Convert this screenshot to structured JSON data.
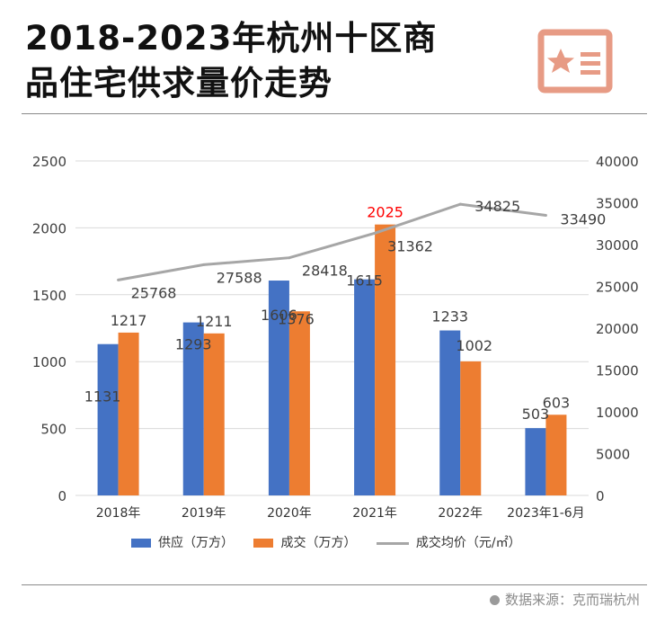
{
  "page": {
    "title_line1": "2018-2023年杭州十区商",
    "title_line2": "品住宅供求量价走势",
    "badge_icon": "news-star-icon",
    "badge_color": "#e79b85",
    "source": "数据来源：克而瑞杭州"
  },
  "chart_data": {
    "type": "bar",
    "categories": [
      "2018年",
      "2019年",
      "2020年",
      "2021年",
      "2022年",
      "2023年1-6月"
    ],
    "series": [
      {
        "name": "供应（万方）",
        "type": "bar",
        "axis": "left",
        "color": "#4472c4",
        "values": [
          1131,
          1293,
          1606,
          1615,
          1233,
          503
        ]
      },
      {
        "name": "成交（万方）",
        "type": "bar",
        "axis": "left",
        "color": "#ed7d31",
        "values": [
          1217,
          1211,
          1376,
          2025,
          1002,
          603
        ]
      },
      {
        "name": "成交均价（元/㎡）",
        "type": "line",
        "axis": "right",
        "color": "#a6a6a6",
        "values": [
          25768,
          27588,
          28418,
          31362,
          34825,
          33490
        ]
      }
    ],
    "highlight": {
      "series": 1,
      "index": 3,
      "color": "#ff0000"
    },
    "y_left": {
      "min": 0,
      "max": 2500,
      "ticks": [
        0,
        500,
        1000,
        1500,
        2000,
        2500
      ]
    },
    "y_right": {
      "min": 0,
      "max": 40000,
      "ticks": [
        0,
        5000,
        10000,
        15000,
        20000,
        25000,
        30000,
        35000,
        40000
      ]
    },
    "grid": true,
    "legend": "bottom"
  }
}
